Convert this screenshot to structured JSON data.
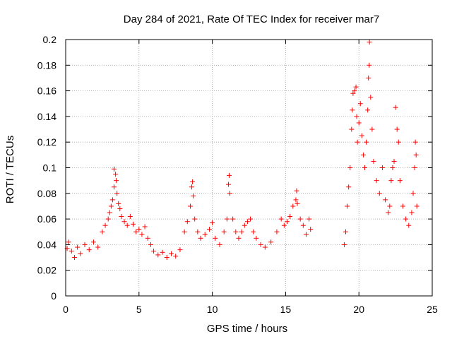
{
  "chart_data": {
    "type": "scatter",
    "title": "Day 284 of 2021, Rate Of TEC Index for receiver mar7",
    "xlabel": "GPS time / hours",
    "ylabel": "ROTI / TECUs",
    "xlim": [
      0,
      25
    ],
    "ylim": [
      0,
      0.2
    ],
    "xticks": [
      0,
      5,
      10,
      15,
      20,
      25
    ],
    "yticks": [
      0,
      0.02,
      0.04,
      0.06,
      0.08,
      0.1,
      0.12,
      0.14,
      0.16,
      0.18,
      0.2
    ],
    "xtick_labels": [
      "0",
      "5",
      "10",
      "15",
      "20",
      "25"
    ],
    "ytick_labels": [
      "0",
      "0.02",
      "0.04",
      "0.06",
      "0.08",
      "0.1",
      "0.12",
      "0.14",
      "0.16",
      "0.18",
      "0.2"
    ],
    "grid": true,
    "marker": "+",
    "color": "#ff0000",
    "series": [
      {
        "name": "ROTI",
        "points": [
          [
            0.1,
            0.037
          ],
          [
            0.2,
            0.042
          ],
          [
            0.4,
            0.035
          ],
          [
            0.6,
            0.03
          ],
          [
            0.8,
            0.038
          ],
          [
            1.0,
            0.033
          ],
          [
            1.3,
            0.04
          ],
          [
            1.6,
            0.036
          ],
          [
            1.9,
            0.042
          ],
          [
            2.2,
            0.038
          ],
          [
            2.5,
            0.05
          ],
          [
            2.7,
            0.055
          ],
          [
            2.9,
            0.06
          ],
          [
            3.0,
            0.065
          ],
          [
            3.1,
            0.07
          ],
          [
            3.2,
            0.075
          ],
          [
            3.3,
            0.085
          ],
          [
            3.3,
            0.099
          ],
          [
            3.4,
            0.095
          ],
          [
            3.45,
            0.09
          ],
          [
            3.5,
            0.08
          ],
          [
            3.6,
            0.072
          ],
          [
            3.7,
            0.068
          ],
          [
            3.8,
            0.062
          ],
          [
            4.0,
            0.058
          ],
          [
            4.2,
            0.055
          ],
          [
            4.4,
            0.062
          ],
          [
            4.6,
            0.056
          ],
          [
            4.8,
            0.05
          ],
          [
            5.0,
            0.052
          ],
          [
            5.2,
            0.048
          ],
          [
            5.4,
            0.054
          ],
          [
            5.6,
            0.045
          ],
          [
            5.8,
            0.04
          ],
          [
            6.0,
            0.035
          ],
          [
            6.3,
            0.032
          ],
          [
            6.6,
            0.034
          ],
          [
            6.9,
            0.03
          ],
          [
            7.2,
            0.033
          ],
          [
            7.5,
            0.031
          ],
          [
            7.8,
            0.036
          ],
          [
            8.1,
            0.05
          ],
          [
            8.3,
            0.058
          ],
          [
            8.5,
            0.07
          ],
          [
            8.6,
            0.085
          ],
          [
            8.65,
            0.089
          ],
          [
            8.7,
            0.078
          ],
          [
            8.8,
            0.06
          ],
          [
            9.0,
            0.05
          ],
          [
            9.2,
            0.045
          ],
          [
            9.5,
            0.048
          ],
          [
            9.8,
            0.052
          ],
          [
            10.0,
            0.057
          ],
          [
            10.2,
            0.045
          ],
          [
            10.5,
            0.04
          ],
          [
            10.8,
            0.05
          ],
          [
            11.0,
            0.06
          ],
          [
            11.1,
            0.087
          ],
          [
            11.15,
            0.094
          ],
          [
            11.2,
            0.08
          ],
          [
            11.4,
            0.06
          ],
          [
            11.6,
            0.05
          ],
          [
            11.8,
            0.045
          ],
          [
            12.0,
            0.05
          ],
          [
            12.2,
            0.055
          ],
          [
            12.4,
            0.058
          ],
          [
            12.6,
            0.06
          ],
          [
            12.8,
            0.05
          ],
          [
            13.0,
            0.045
          ],
          [
            13.3,
            0.04
          ],
          [
            13.6,
            0.038
          ],
          [
            14.0,
            0.042
          ],
          [
            14.4,
            0.05
          ],
          [
            14.7,
            0.06
          ],
          [
            14.9,
            0.055
          ],
          [
            15.1,
            0.058
          ],
          [
            15.3,
            0.062
          ],
          [
            15.5,
            0.07
          ],
          [
            15.7,
            0.075
          ],
          [
            15.75,
            0.082
          ],
          [
            15.8,
            0.072
          ],
          [
            16.0,
            0.06
          ],
          [
            16.2,
            0.055
          ],
          [
            16.4,
            0.048
          ],
          [
            16.6,
            0.06
          ],
          [
            16.7,
            0.052
          ],
          [
            19.0,
            0.04
          ],
          [
            19.1,
            0.05
          ],
          [
            19.2,
            0.07
          ],
          [
            19.3,
            0.085
          ],
          [
            19.4,
            0.1
          ],
          [
            19.5,
            0.13
          ],
          [
            19.55,
            0.145
          ],
          [
            19.6,
            0.158
          ],
          [
            19.7,
            0.16
          ],
          [
            19.8,
            0.163
          ],
          [
            19.85,
            0.14
          ],
          [
            19.9,
            0.12
          ],
          [
            20.0,
            0.135
          ],
          [
            20.1,
            0.15
          ],
          [
            20.2,
            0.125
          ],
          [
            20.3,
            0.11
          ],
          [
            20.4,
            0.1
          ],
          [
            20.5,
            0.12
          ],
          [
            20.6,
            0.145
          ],
          [
            20.65,
            0.17
          ],
          [
            20.7,
            0.18
          ],
          [
            20.72,
            0.198
          ],
          [
            20.8,
            0.155
          ],
          [
            20.9,
            0.13
          ],
          [
            21.0,
            0.105
          ],
          [
            21.2,
            0.09
          ],
          [
            21.4,
            0.08
          ],
          [
            21.6,
            0.1
          ],
          [
            21.8,
            0.075
          ],
          [
            22.0,
            0.065
          ],
          [
            22.1,
            0.07
          ],
          [
            22.2,
            0.09
          ],
          [
            22.3,
            0.1
          ],
          [
            22.4,
            0.105
          ],
          [
            22.5,
            0.147
          ],
          [
            22.6,
            0.13
          ],
          [
            22.7,
            0.12
          ],
          [
            22.8,
            0.09
          ],
          [
            23.0,
            0.07
          ],
          [
            23.2,
            0.06
          ],
          [
            23.4,
            0.055
          ],
          [
            23.6,
            0.065
          ],
          [
            23.7,
            0.08
          ],
          [
            23.8,
            0.1
          ],
          [
            23.85,
            0.12
          ],
          [
            23.9,
            0.11
          ],
          [
            23.95,
            0.07
          ]
        ]
      }
    ]
  }
}
